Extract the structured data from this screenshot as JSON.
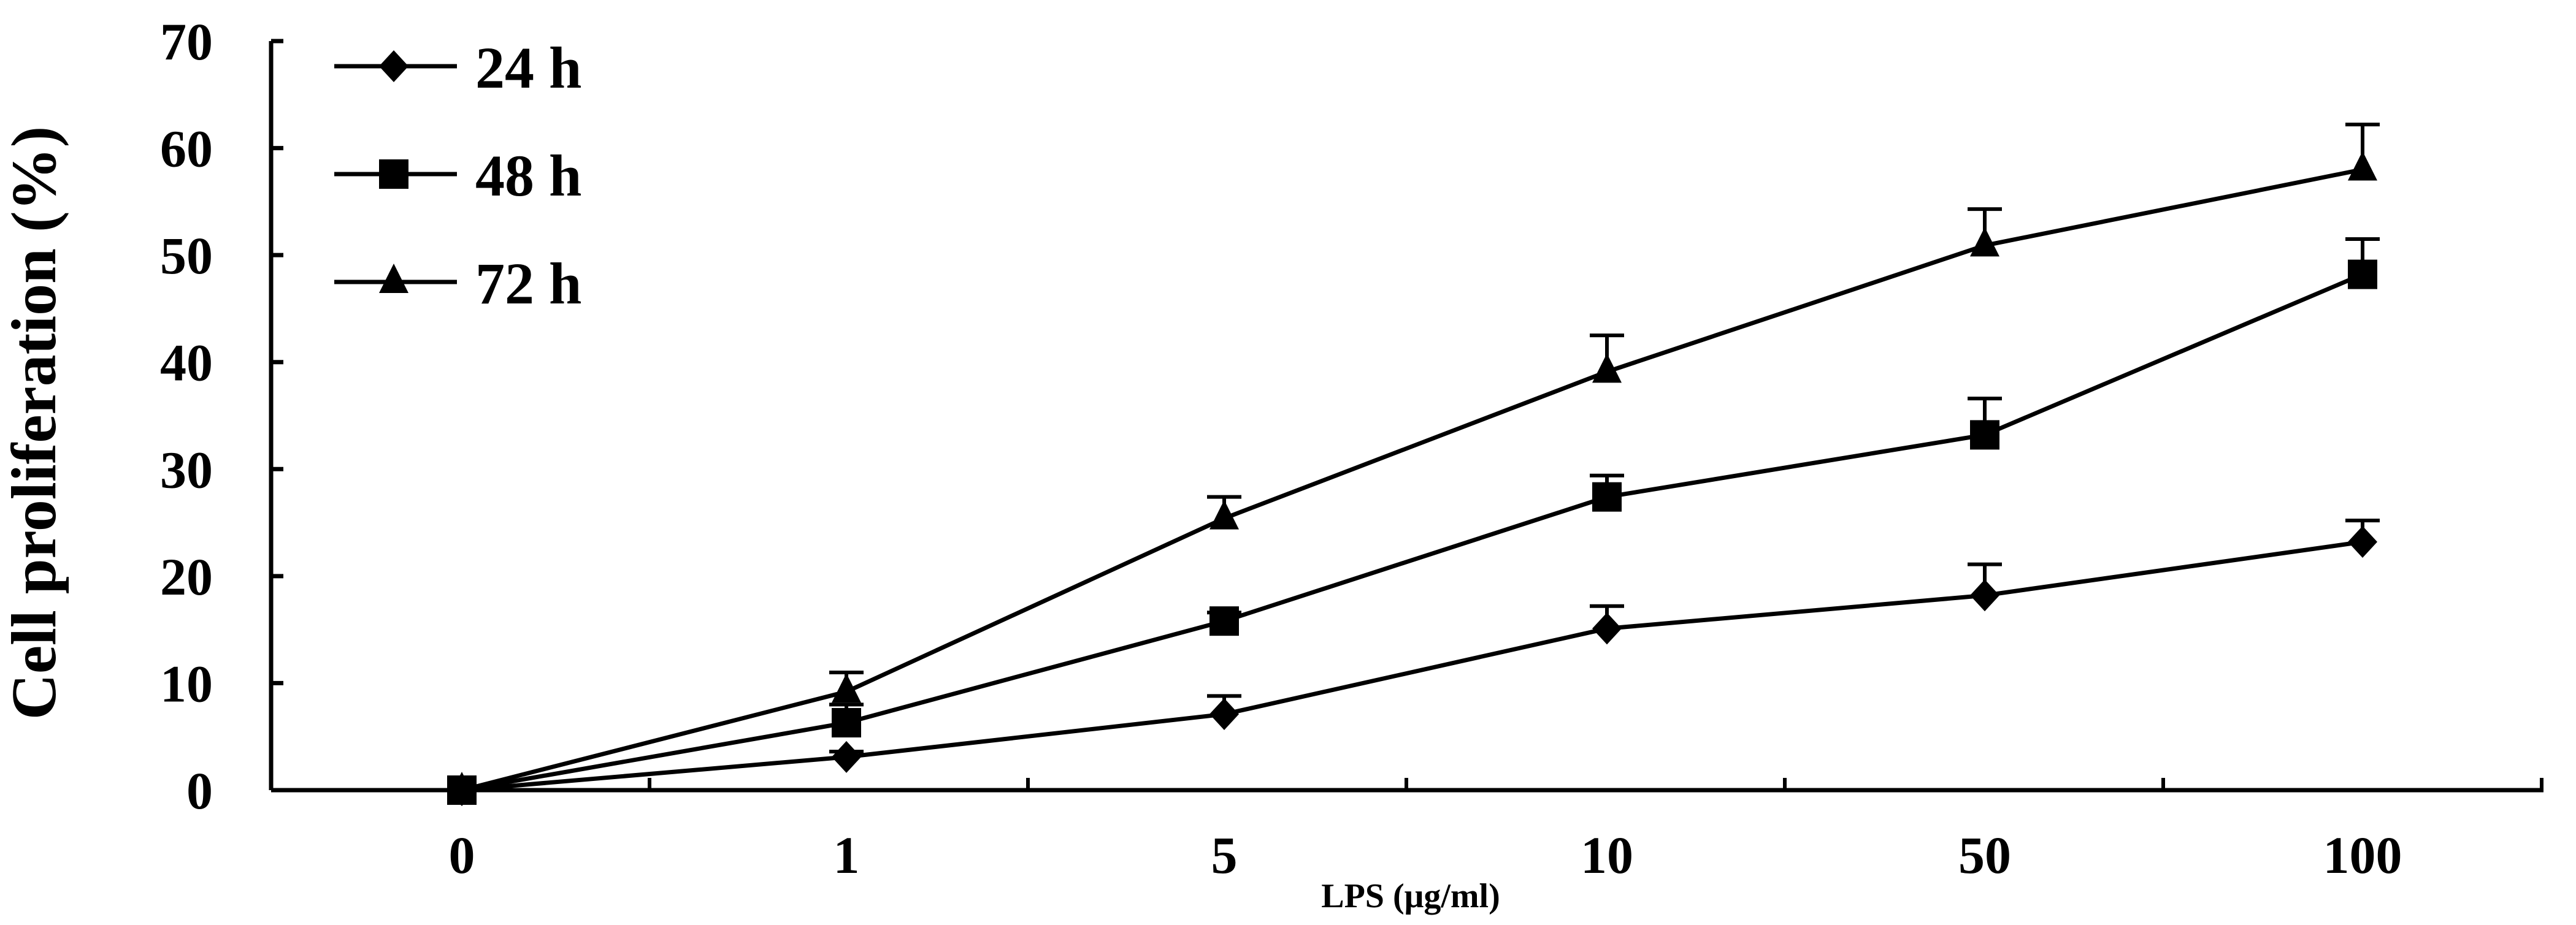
{
  "chart_data": {
    "type": "line",
    "title": "",
    "xlabel": "LPS (μg/ml)",
    "ylabel": "Cell proliferation (%)",
    "categories": [
      "0",
      "1",
      "5",
      "10",
      "50",
      "100"
    ],
    "ylim": [
      0,
      70
    ],
    "yticks": [
      "0",
      "10",
      "20",
      "30",
      "40",
      "50",
      "60",
      "70"
    ],
    "grid": false,
    "legend_position": "top-left",
    "series": [
      {
        "name": "24 h",
        "marker": "diamond",
        "values": [
          0,
          3.1,
          7.1,
          15.1,
          18.2,
          23.2
        ],
        "error_upper": [
          0,
          0.5,
          1.7,
          2.1,
          2.9,
          2.0
        ]
      },
      {
        "name": "48 h",
        "marker": "square",
        "values": [
          0,
          6.3,
          15.8,
          27.4,
          33.2,
          48.2
        ],
        "error_upper": [
          0,
          1.7,
          0.8,
          2.0,
          3.4,
          3.3
        ]
      },
      {
        "name": "72 h",
        "marker": "triangle",
        "values": [
          0,
          9.2,
          25.4,
          39.1,
          50.9,
          58.0
        ],
        "error_upper": [
          0,
          1.8,
          2.0,
          3.4,
          3.4,
          4.2
        ]
      }
    ],
    "colors": {
      "line": "#000000",
      "background": "#ffffff"
    }
  }
}
